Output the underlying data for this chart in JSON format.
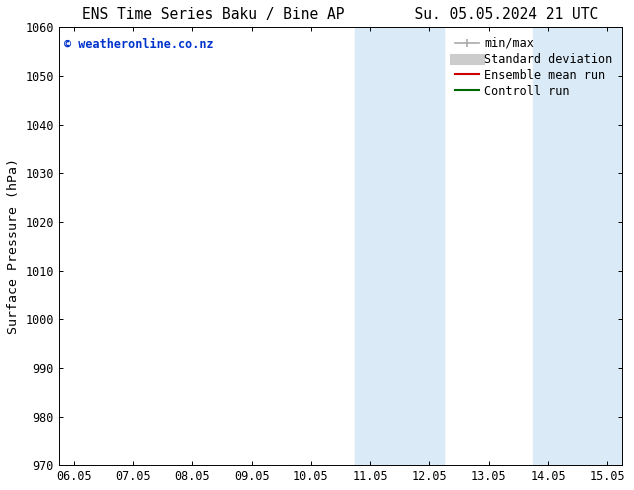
{
  "title_left": "ENS Time Series Baku / Bine AP",
  "title_right": "Su. 05.05.2024 21 UTC",
  "ylabel": "Surface Pressure (hPa)",
  "ylim": [
    970,
    1060
  ],
  "yticks": [
    970,
    980,
    990,
    1000,
    1010,
    1020,
    1030,
    1040,
    1050,
    1060
  ],
  "xtick_labels": [
    "06.05",
    "07.05",
    "08.05",
    "09.05",
    "10.05",
    "11.05",
    "12.05",
    "13.05",
    "14.05",
    "15.05"
  ],
  "xtick_positions": [
    0,
    1,
    2,
    3,
    4,
    5,
    6,
    7,
    8,
    9
  ],
  "xlim": [
    -0.25,
    9.25
  ],
  "shaded_bands": [
    {
      "xmin": 4.75,
      "xmax": 5.5,
      "color": "#daeaf7"
    },
    {
      "xmin": 5.5,
      "xmax": 6.25,
      "color": "#daeaf7"
    },
    {
      "xmin": 7.75,
      "xmax": 8.5,
      "color": "#daeaf7"
    },
    {
      "xmin": 8.5,
      "xmax": 9.25,
      "color": "#daeaf7"
    }
  ],
  "watermark_text": "© weatheronline.co.nz",
  "watermark_color": "#0033cc",
  "legend_entries": [
    {
      "label": "min/max",
      "color": "#aaaaaa",
      "lw": 1.2,
      "ls": "-",
      "type": "line_with_caps"
    },
    {
      "label": "Standard deviation",
      "color": "#cccccc",
      "lw": 8,
      "ls": "-",
      "type": "thick_line"
    },
    {
      "label": "Ensemble mean run",
      "color": "#cc0000",
      "lw": 1.5,
      "ls": "-",
      "type": "line"
    },
    {
      "label": "Controll run",
      "color": "#006600",
      "lw": 1.5,
      "ls": "-",
      "type": "line"
    }
  ],
  "background_color": "#ffffff",
  "plot_bg_color": "#ffffff",
  "font_color": "#000000",
  "title_fontsize": 10.5,
  "tick_fontsize": 8.5,
  "ylabel_fontsize": 9.5,
  "legend_fontsize": 8.5
}
